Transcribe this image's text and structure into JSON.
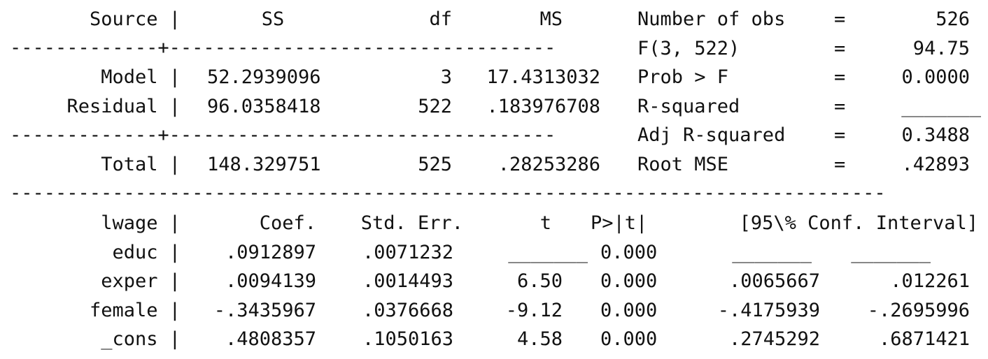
{
  "anova": {
    "headers": {
      "source": "Source |",
      "ss": "SS",
      "df": "df",
      "ms": "MS"
    },
    "rule_top": "-------------+----------------------------------",
    "rows": [
      {
        "source": "Model |",
        "ss": "52.2939096",
        "df": "3",
        "ms": "17.4313032"
      },
      {
        "source": "Residual |",
        "ss": "96.0358418",
        "df": "522",
        "ms": ".183976708"
      }
    ],
    "rule_mid": "-------------+----------------------------------",
    "total": {
      "source": "Total |",
      "ss": "148.329751",
      "df": "525",
      "ms": ".28253286"
    }
  },
  "stats": [
    {
      "label": "Number of obs",
      "eq": "=",
      "value": "526"
    },
    {
      "label": "F(3, 522)",
      "eq": "=",
      "value": "94.75"
    },
    {
      "label": "Prob > F",
      "eq": "=",
      "value": "0.0000"
    },
    {
      "label": "R-squared",
      "eq": "=",
      "value": "_______"
    },
    {
      "label": "Adj R-squared",
      "eq": "=",
      "value": "0.3488"
    },
    {
      "label": "Root MSE",
      "eq": "=",
      "value": ".42893"
    }
  ],
  "rule_full": "-----------------------------------------------------------------------------",
  "coef": {
    "headers": {
      "var": "lwage |",
      "coef": "Coef.",
      "se": "Std. Err.",
      "t": "t",
      "p": "P>|t|",
      "ci": "[95\\% Conf. Interval]"
    },
    "rows": [
      {
        "var": "educ |",
        "coef": ".0912897",
        "se": ".0071232",
        "t": "_______",
        "p": "0.000",
        "lo": "_______",
        "hi": "_______"
      },
      {
        "var": "exper |",
        "coef": ".0094139",
        "se": ".0014493",
        "t": "6.50",
        "p": "0.000",
        "lo": ".0065667",
        "hi": ".012261"
      },
      {
        "var": "female |",
        "coef": "-.3435967",
        "se": ".0376668",
        "t": "-9.12",
        "p": "0.000",
        "lo": "-.4175939",
        "hi": "-.2695996"
      },
      {
        "var": "_cons |",
        "coef": ".4808357",
        "se": ".1050163",
        "t": "4.58",
        "p": "0.000",
        "lo": ".2745292",
        "hi": ".6871421"
      }
    ]
  }
}
